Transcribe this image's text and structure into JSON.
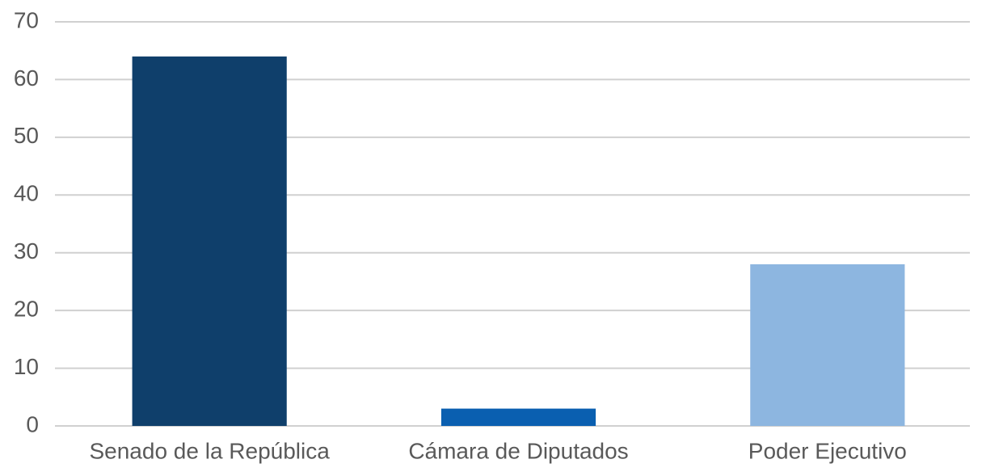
{
  "chart_data": {
    "type": "bar",
    "categories": [
      "Senado de la República",
      "Cámara de Diputados",
      "Poder Ejecutivo"
    ],
    "values": [
      64,
      3,
      28
    ],
    "colors": [
      "#0f3f6b",
      "#0a5fb0",
      "#8db6e0"
    ],
    "ylim": [
      0,
      70
    ],
    "yticks": [
      0,
      10,
      20,
      30,
      40,
      50,
      60,
      70
    ],
    "grid": true
  }
}
